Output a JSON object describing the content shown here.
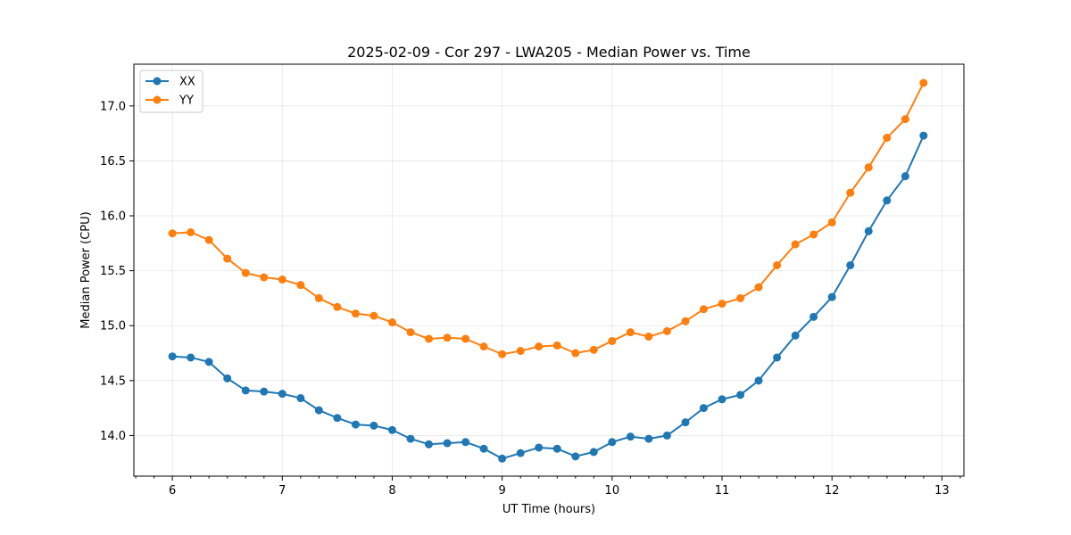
{
  "chart_data": {
    "type": "line",
    "title": "2025-02-09 - Cor 297 - LWA205 - Median Power vs. Time",
    "xlabel": "UT Time (hours)",
    "ylabel": "Median Power (CPU)",
    "xlim": [
      5.65,
      13.2
    ],
    "ylim": [
      13.63,
      17.38
    ],
    "xticks": [
      6,
      7,
      8,
      9,
      10,
      11,
      12,
      13
    ],
    "xtick_labels": [
      "6",
      "7",
      "8",
      "9",
      "10",
      "11",
      "12",
      "13"
    ],
    "yticks": [
      14.0,
      14.5,
      15.0,
      15.5,
      16.0,
      16.5,
      17.0
    ],
    "ytick_labels": [
      "14.0",
      "14.5",
      "15.0",
      "15.5",
      "16.0",
      "16.5",
      "17.0"
    ],
    "grid": true,
    "legend_position": "top-left",
    "x": [
      6.0,
      6.167,
      6.333,
      6.5,
      6.667,
      6.833,
      7.0,
      7.167,
      7.333,
      7.5,
      7.667,
      7.833,
      8.0,
      8.167,
      8.333,
      8.5,
      8.667,
      8.833,
      9.0,
      9.167,
      9.333,
      9.5,
      9.667,
      9.833,
      10.0,
      10.167,
      10.333,
      10.5,
      10.667,
      10.833,
      11.0,
      11.167,
      11.333,
      11.5,
      11.667,
      11.833,
      12.0,
      12.167,
      12.333,
      12.5,
      12.667,
      12.833
    ],
    "series": [
      {
        "name": "XX",
        "color": "#1f77b4",
        "values": [
          14.72,
          14.71,
          14.67,
          14.52,
          14.41,
          14.4,
          14.38,
          14.34,
          14.23,
          14.16,
          14.1,
          14.09,
          14.05,
          13.97,
          13.92,
          13.93,
          13.94,
          13.88,
          13.79,
          13.84,
          13.89,
          13.88,
          13.81,
          13.85,
          13.94,
          13.99,
          13.97,
          14.0,
          14.12,
          14.25,
          14.33,
          14.37,
          14.5,
          14.71,
          14.91,
          15.08,
          15.26,
          15.55,
          15.86,
          16.14,
          16.36,
          16.73
        ]
      },
      {
        "name": "YY",
        "color": "#ff7f0e",
        "values": [
          15.84,
          15.85,
          15.78,
          15.61,
          15.48,
          15.44,
          15.42,
          15.37,
          15.25,
          15.17,
          15.11,
          15.09,
          15.03,
          14.94,
          14.88,
          14.89,
          14.88,
          14.81,
          14.74,
          14.77,
          14.81,
          14.82,
          14.75,
          14.78,
          14.86,
          14.94,
          14.9,
          14.95,
          15.04,
          15.15,
          15.2,
          15.25,
          15.35,
          15.55,
          15.74,
          15.83,
          15.94,
          16.21,
          16.44,
          16.71,
          16.88,
          17.21
        ]
      }
    ]
  }
}
